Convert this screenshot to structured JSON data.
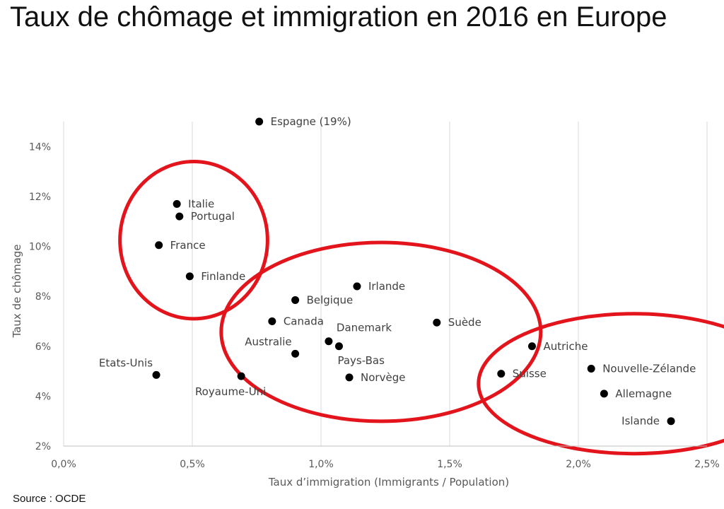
{
  "page": {
    "title": "Taux de chômage et immigration en 2016 en Europe",
    "source": "Source : OCDE"
  },
  "chart_data": {
    "type": "scatter",
    "title": "Taux de chômage et immigration en 2016 en Europe",
    "xlabel": "Taux d’immigration (Immigrants / Population)",
    "ylabel": "Taux de chômage",
    "xlim": [
      0,
      2.5
    ],
    "ylim": [
      2,
      15
    ],
    "xticks": [
      0,
      0.5,
      1,
      1.5,
      2,
      2.5
    ],
    "xtick_labels": [
      "0,0%",
      "0,5%",
      "1,0%",
      "1,5%",
      "2,0%",
      "2,5%"
    ],
    "yticks": [
      2,
      4,
      6,
      8,
      10,
      12,
      14
    ],
    "ytick_labels": [
      "2%",
      "4%",
      "6%",
      "8%",
      "10%",
      "12%",
      "14%"
    ],
    "grid": "vertical",
    "marker_color": "#000000",
    "points": [
      {
        "label": "Espagne (19%)",
        "x": 0.76,
        "y": 15.0,
        "label_pos": "right"
      },
      {
        "label": "Italie",
        "x": 0.44,
        "y": 11.7,
        "label_pos": "right"
      },
      {
        "label": "Portugal",
        "x": 0.45,
        "y": 11.2,
        "label_pos": "right"
      },
      {
        "label": "France",
        "x": 0.37,
        "y": 10.05,
        "label_pos": "right"
      },
      {
        "label": "Finlande",
        "x": 0.49,
        "y": 8.8,
        "label_pos": "right"
      },
      {
        "label": "Irlande",
        "x": 1.14,
        "y": 8.4,
        "label_pos": "right"
      },
      {
        "label": "Belgique",
        "x": 0.9,
        "y": 7.85,
        "label_pos": "right"
      },
      {
        "label": "Canada",
        "x": 0.81,
        "y": 7.0,
        "label_pos": "right"
      },
      {
        "label": "Suède",
        "x": 1.45,
        "y": 6.95,
        "label_pos": "right"
      },
      {
        "label": "Danemark",
        "x": 1.03,
        "y": 6.2,
        "label_pos": "above-right"
      },
      {
        "label": "Pays-Bas",
        "x": 1.07,
        "y": 6.0,
        "label_pos": "below-right"
      },
      {
        "label": "Australie",
        "x": 0.9,
        "y": 5.7,
        "label_pos": "above-left"
      },
      {
        "label": "Norvège",
        "x": 1.11,
        "y": 4.75,
        "label_pos": "right"
      },
      {
        "label": "Etats-Unis",
        "x": 0.36,
        "y": 4.85,
        "label_pos": "above-left"
      },
      {
        "label": "Royaume-Uni",
        "x": 0.69,
        "y": 4.8,
        "label_pos": "below"
      },
      {
        "label": "Autriche",
        "x": 1.82,
        "y": 6.0,
        "label_pos": "right"
      },
      {
        "label": "Suisse",
        "x": 1.7,
        "y": 4.9,
        "label_pos": "right"
      },
      {
        "label": "Nouvelle-Zélande",
        "x": 2.05,
        "y": 5.1,
        "label_pos": "right"
      },
      {
        "label": "Allemagne",
        "x": 2.1,
        "y": 4.1,
        "label_pos": "right"
      },
      {
        "label": "Islande",
        "x": 2.36,
        "y": 3.0,
        "label_pos": "left"
      }
    ],
    "annotations": {
      "circle_color": "#e3141b",
      "groups": [
        [
          "Italie",
          "Portugal",
          "France",
          "Finlande"
        ],
        [
          "Irlande",
          "Belgique",
          "Canada",
          "Suède",
          "Danemark",
          "Pays-Bas",
          "Australie",
          "Norvège"
        ],
        [
          "Autriche",
          "Suisse",
          "Nouvelle-Zélande",
          "Allemagne",
          "Islande"
        ]
      ]
    }
  }
}
